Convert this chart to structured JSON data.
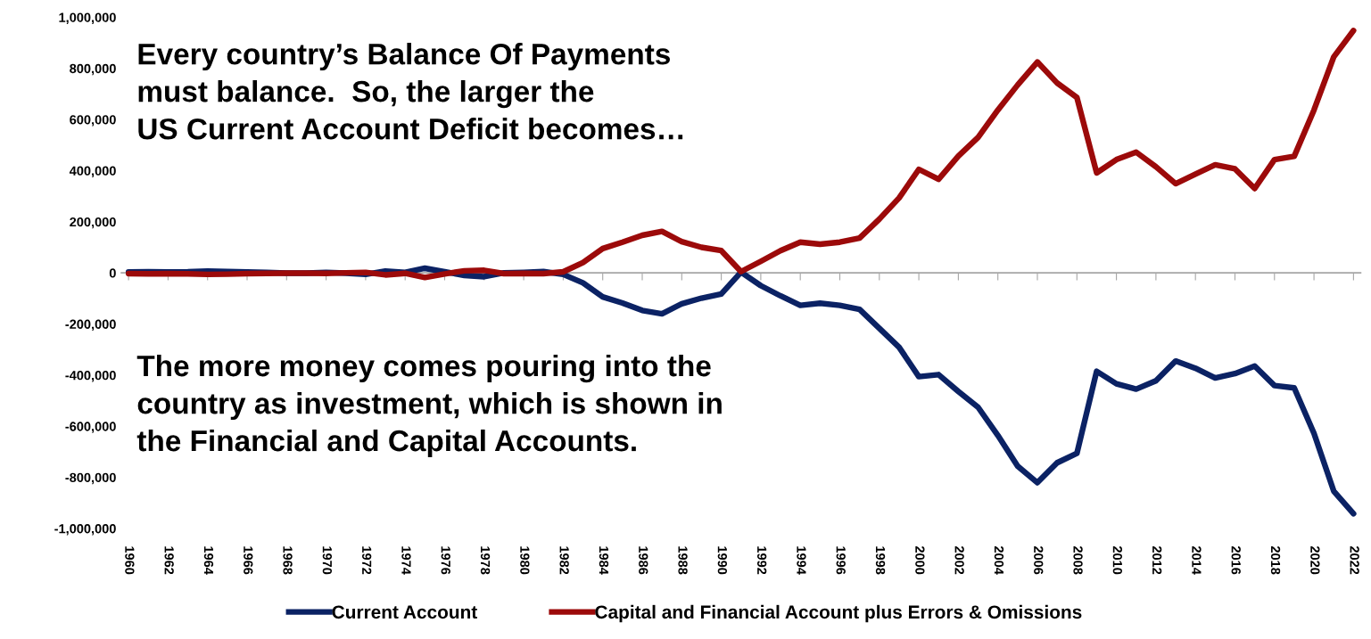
{
  "chart_data": {
    "type": "line",
    "categories": [
      "1960",
      null,
      "1962",
      null,
      "1964",
      null,
      "1966",
      null,
      "1968",
      null,
      "1970",
      null,
      "1972",
      null,
      "1974",
      null,
      "1976",
      null,
      "1978",
      null,
      "1980",
      null,
      "1982",
      null,
      "1984",
      null,
      "1986",
      null,
      "1988",
      null,
      "1990",
      null,
      "1992",
      null,
      "1994",
      null,
      "1996",
      null,
      "1998",
      null,
      "2000",
      null,
      "2002",
      null,
      "2004",
      null,
      "2006",
      null,
      "2008",
      null,
      "2010",
      null,
      "2012",
      null,
      "2014",
      null,
      "2016",
      null,
      "2018",
      null,
      "2020",
      null,
      "2022"
    ],
    "series": [
      {
        "name": "Current Account",
        "color": "#0b2264",
        "values": [
          3000,
          4000,
          3000,
          4000,
          7000,
          5000,
          3000,
          2000,
          -1000,
          -1000,
          2000,
          -1000,
          -6000,
          7000,
          2000,
          18000,
          4000,
          -10000,
          -15000,
          0,
          2000,
          5000,
          -6000,
          -39000,
          -94000,
          -118000,
          -147000,
          -160000,
          -121000,
          -99000,
          -83000,
          3000,
          -50000,
          -90000,
          -127000,
          -119000,
          -127000,
          -143000,
          -217000,
          -291000,
          -406000,
          -398000,
          -464000,
          -526000,
          -636000,
          -756000,
          -821000,
          -743000,
          -706000,
          -385000,
          -434000,
          -455000,
          -422000,
          -345000,
          -373000,
          -411000,
          -394000,
          -365000,
          -441000,
          -450000,
          -628000,
          -854000,
          -942000
        ]
      },
      {
        "name": "Capital and Financial Account plus Errors & Omissions",
        "color": "#9c0a0a",
        "values": [
          -3000,
          -4000,
          -3000,
          -4000,
          -6000,
          -5000,
          -3000,
          -2000,
          -1000,
          -1000,
          -2000,
          0,
          2000,
          -8000,
          -2000,
          -18000,
          -4000,
          8000,
          10000,
          -3000,
          -2000,
          -3000,
          4000,
          40000,
          95000,
          120000,
          147000,
          162000,
          122000,
          100000,
          87000,
          5000,
          45000,
          87000,
          120000,
          112000,
          120000,
          136000,
          210000,
          293000,
          405000,
          366000,
          457000,
          530000,
          637000,
          735000,
          825000,
          743000,
          686000,
          391000,
          443000,
          472000,
          415000,
          349000,
          386000,
          423000,
          407000,
          330000,
          443000,
          456000,
          637000,
          845000,
          948000
        ]
      }
    ],
    "ylim": [
      -1000000,
      1000000
    ],
    "yticks": [
      {
        "value": -1000000,
        "label": "-1,000,000"
      },
      {
        "value": -800000,
        "label": "-800,000"
      },
      {
        "value": -600000,
        "label": "-600,000"
      },
      {
        "value": -400000,
        "label": "-400,000"
      },
      {
        "value": -200000,
        "label": "-200,000"
      },
      0,
      {
        "value": 200000,
        "label": "200,000"
      },
      {
        "value": 400000,
        "label": "400,000"
      },
      {
        "value": 600000,
        "label": "600,000"
      },
      {
        "value": 800000,
        "label": "800,000"
      },
      {
        "value": 1000000,
        "label": "1,000,000"
      }
    ],
    "annotations": [
      "Every country’s Balance Of Payments\nmust balance.  So, the larger the\nUS Current Account Deficit becomes…",
      "The more money comes pouring into the\ncountry as investment, which is shown in\nthe Financial and Capital Accounts."
    ],
    "ref_lines": [
      {
        "axis": "y",
        "value": 0,
        "color": "#a6a6a6"
      }
    ],
    "grid": false,
    "legend": "bottom",
    "marker": "none",
    "line_style": "solid"
  }
}
